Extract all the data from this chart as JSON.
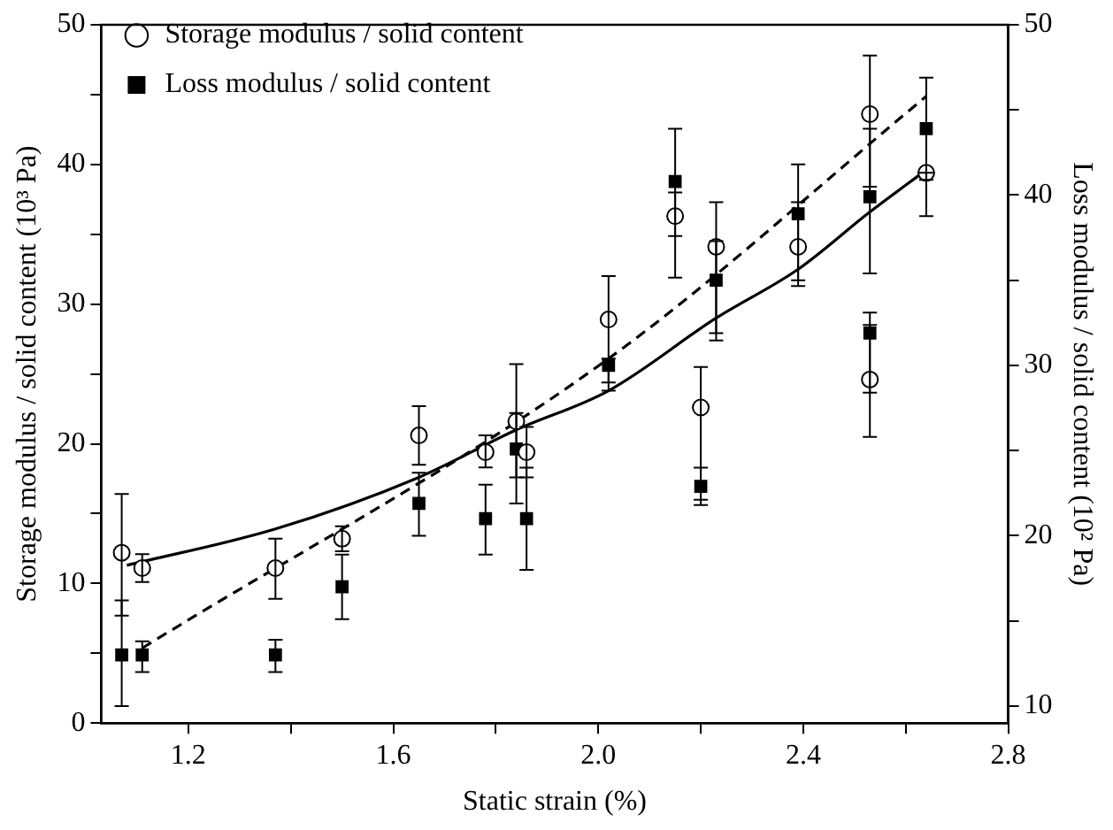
{
  "chart_data": {
    "type": "scatter",
    "xlabel": "Static strain (%)",
    "ylabel": "Storage modulus / solid content (10³ Pa)",
    "y2label": "Loss modulus / solid content (10² Pa)",
    "xlim": [
      1.03,
      2.8
    ],
    "xticks": [
      1.2,
      {
        "value": 1.4,
        "label": null
      },
      1.6,
      {
        "value": 1.8,
        "label": null
      },
      {
        "value": 2.0,
        "label": "2.0"
      },
      {
        "value": 2.2,
        "label": null
      },
      2.4,
      {
        "value": 2.6,
        "label": null
      },
      2.8
    ],
    "ylim": [
      0,
      50
    ],
    "yticks": [
      0,
      {
        "value": 5,
        "label": null
      },
      10,
      {
        "value": 15,
        "label": null
      },
      20,
      {
        "value": 25,
        "label": null
      },
      30,
      {
        "value": 35,
        "label": null
      },
      40,
      {
        "value": 45,
        "label": null
      },
      50
    ],
    "y2lim": [
      9,
      50
    ],
    "y2ticks": [
      10,
      {
        "value": 15,
        "label": null
      },
      20,
      {
        "value": 25,
        "label": null
      },
      30,
      {
        "value": 35,
        "label": null
      },
      40,
      {
        "value": 45,
        "label": null
      },
      50
    ],
    "grid": false,
    "legend": "top left",
    "marker": "circle",
    "series": [
      {
        "name": "Storage modulus / solid content",
        "color": "#000000",
        "x": [
          1.07,
          1.11,
          1.37,
          1.5,
          1.65,
          1.78,
          1.84,
          1.86,
          2.02,
          2.15,
          2.2,
          2.23,
          2.39,
          2.53,
          2.53,
          2.64
        ],
        "values": [
          12.2,
          11.1,
          11.1,
          13.2,
          20.6,
          19.4,
          21.6,
          19.4,
          28.9,
          36.3,
          22.6,
          34.1,
          34.1,
          43.6,
          24.6,
          39.4
        ],
        "errors": [
          [
            7.7,
            16.4
          ],
          [
            10.1,
            12.1
          ],
          [
            8.9,
            13.2
          ],
          [
            12.3,
            14.1
          ],
          [
            18.5,
            22.7
          ],
          [
            18.3,
            20.6
          ],
          [
            17.6,
            25.7
          ],
          [
            17.6,
            21.2
          ],
          [
            23.8,
            32.0
          ],
          [
            31.9,
            38.0
          ],
          [
            16.0,
            25.5
          ],
          [
            27.4,
            37.3
          ],
          [
            31.3,
            37.3
          ],
          [
            38.4,
            47.8
          ],
          [
            20.5,
            28.5
          ],
          [
            36.3,
            39.4
          ]
        ]
      },
      {
        "name": "Loss modulus / solid content",
        "marker": "square",
        "axis": "y2",
        "color": "#000000",
        "x": [
          1.07,
          1.11,
          1.37,
          1.5,
          1.65,
          1.78,
          1.84,
          1.86,
          2.02,
          2.15,
          2.2,
          2.23,
          2.39,
          2.53,
          2.53,
          2.64
        ],
        "values": [
          13.0,
          13.0,
          13.0,
          17.0,
          21.9,
          21.0,
          25.1,
          21.0,
          30.0,
          40.8,
          22.9,
          35.0,
          38.9,
          39.9,
          31.9,
          43.9
        ],
        "errors": [
          [
            10.0,
            16.2
          ],
          [
            12.0,
            13.8
          ],
          [
            12.0,
            13.9
          ],
          [
            15.1,
            18.9
          ],
          [
            20.0,
            23.7
          ],
          [
            18.9,
            23.0
          ],
          [
            21.9,
            27.2
          ],
          [
            18.0,
            24.0
          ],
          [
            29.0,
            30.4
          ],
          [
            37.6,
            43.9
          ],
          [
            21.8,
            24.0
          ],
          [
            31.9,
            37.3
          ],
          [
            35.0,
            41.8
          ],
          [
            35.4,
            43.9
          ],
          [
            28.4,
            33.1
          ],
          [
            40.9,
            46.9
          ]
        ]
      },
      {
        "type": "line",
        "marker": "none",
        "line_style": "solid",
        "color": "#000000",
        "x": [
          1.08,
          1.37,
          1.65,
          1.84,
          2.02,
          2.23,
          2.39,
          2.53,
          2.64
        ],
        "values": [
          11.3,
          13.9,
          17.6,
          21.0,
          23.8,
          29.0,
          32.5,
          36.6,
          39.6
        ]
      },
      {
        "type": "line",
        "marker": "none",
        "line_style": "dashed",
        "axis": "y2",
        "color": "#000000",
        "x": [
          1.11,
          2.02,
          2.64
        ],
        "values": [
          13.4,
          30.4,
          45.8
        ]
      }
    ]
  }
}
